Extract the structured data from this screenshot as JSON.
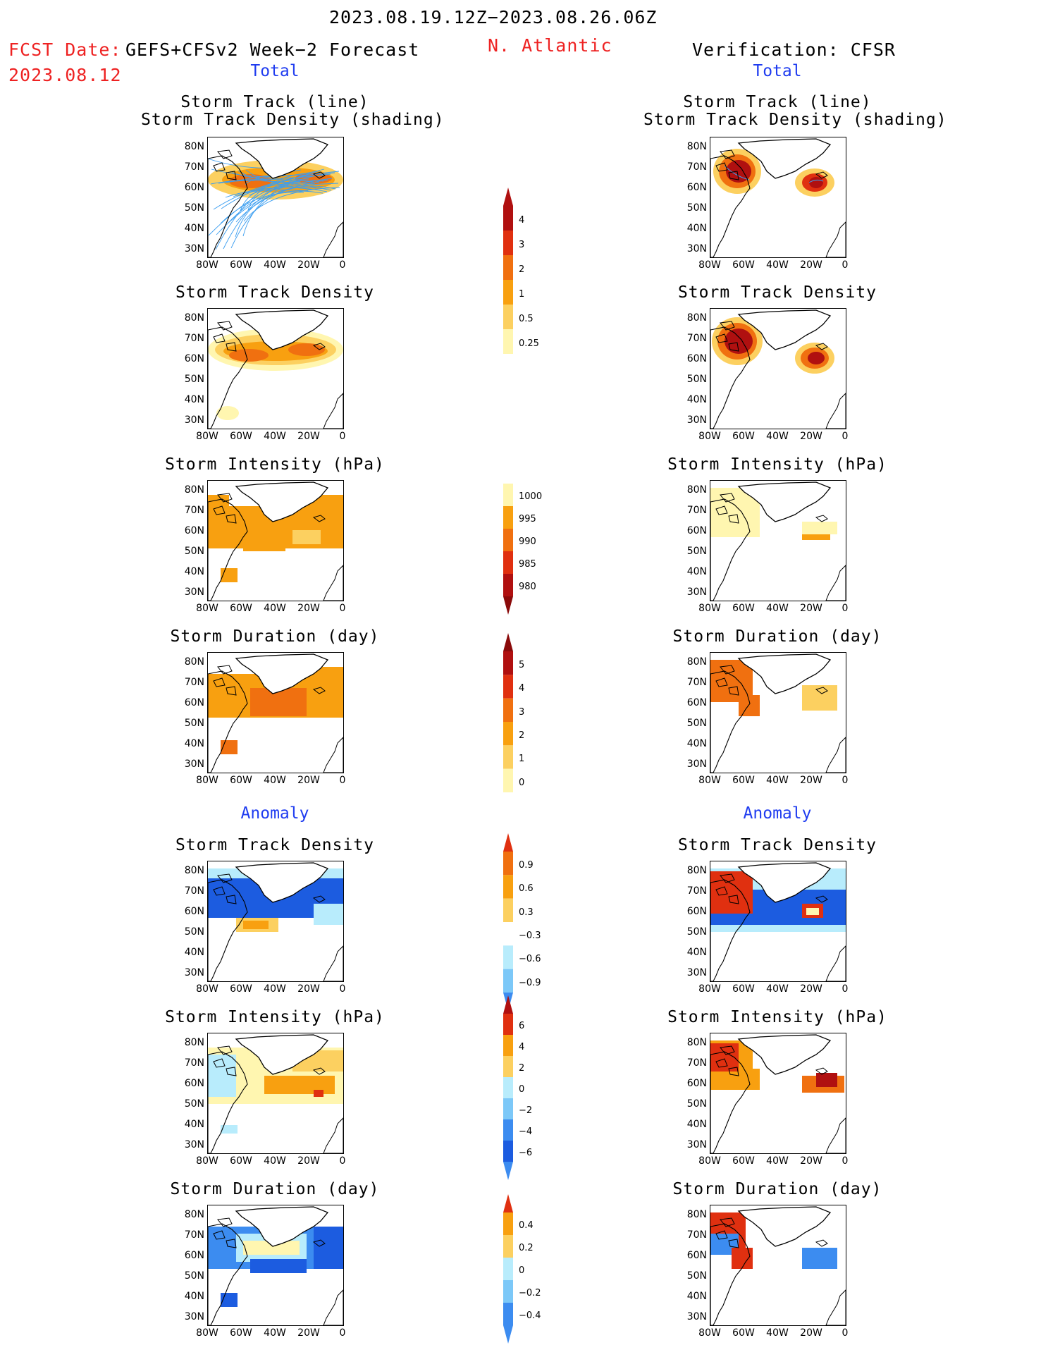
{
  "header": {
    "period": "2023.08.19.12Z−2023.08.26.06Z",
    "fcst_label": "FCST Date:",
    "fcst_model": "GEFS+CFSv2 Week−2 Forecast",
    "fcst_date": "2023.08.12",
    "region": "N. Atlantic",
    "verification": "Verification: CFSR"
  },
  "sections": {
    "total": "Total",
    "anomaly": "Anomaly"
  },
  "panel_titles": {
    "track_line": "Storm Track (line)",
    "track_density_shading": "Storm Track Density (shading)",
    "track_density": "Storm Track Density",
    "intensity": "Storm Intensity (hPa)",
    "duration": "Storm Duration (day)"
  },
  "axes": {
    "lat_labels": [
      "80N",
      "70N",
      "60N",
      "50N",
      "40N",
      "30N"
    ],
    "lon_labels": [
      "80W",
      "60W",
      "40W",
      "20W",
      "0"
    ]
  },
  "colorbars": {
    "density_total": [
      "4",
      "3",
      "2",
      "1",
      "0.5",
      "0.25"
    ],
    "intensity_total": [
      "1000",
      "995",
      "990",
      "985",
      "980"
    ],
    "duration_total": [
      "5",
      "4",
      "3",
      "2",
      "1",
      "0"
    ],
    "density_anom": [
      "0.9",
      "0.6",
      "0.3",
      "−0.3",
      "−0.6",
      "−0.9"
    ],
    "intensity_anom": [
      "6",
      "4",
      "2",
      "0",
      "−2",
      "−4",
      "−6"
    ],
    "duration_anom": [
      "0.4",
      "0.2",
      "0",
      "−0.2",
      "−0.4"
    ]
  },
  "colors": {
    "pale_yellow": "#fff6b0",
    "light_orange": "#fcd060",
    "orange": "#f8a010",
    "dark_orange": "#f07010",
    "red": "#e03010",
    "dark_red": "#b01010",
    "maroon": "#8a0a0a",
    "light_blue": "#b8ecfc",
    "mid_blue": "#7cc8f8",
    "blue": "#3c8cf0",
    "dark_blue": "#1c5ce0",
    "track_blue": "#3c9ef0"
  }
}
